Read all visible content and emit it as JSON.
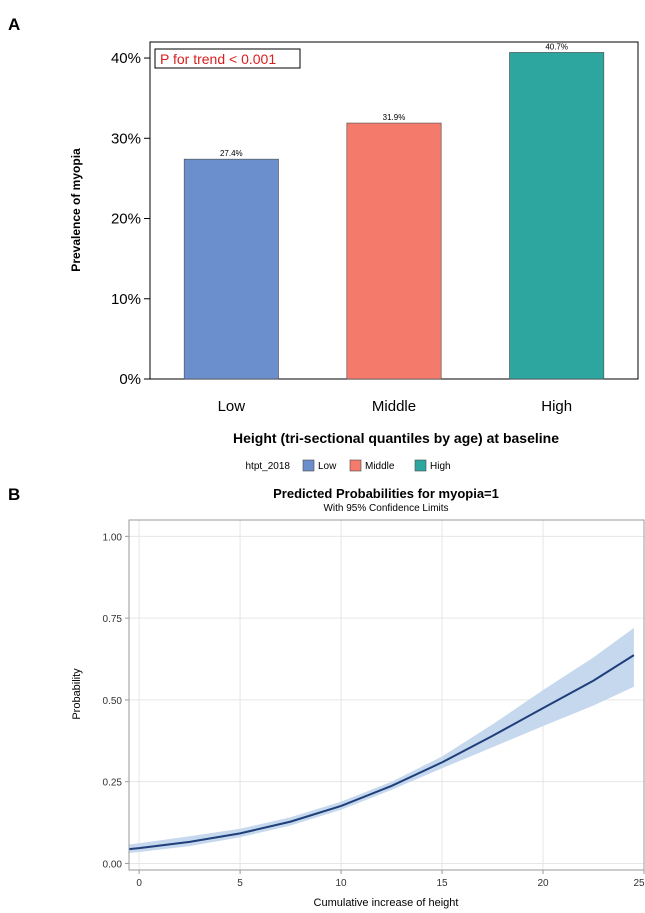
{
  "panels": {
    "a_label": "A",
    "b_label": "B"
  },
  "annotation": {
    "trend": "P for trend <  0.001"
  },
  "chart_data": [
    {
      "type": "bar",
      "categories": [
        "Low",
        "Middle",
        "High"
      ],
      "values": [
        27.4,
        31.9,
        40.7
      ],
      "data_labels": [
        "27.4%",
        "31.9%",
        "40.7%"
      ],
      "colors": [
        "#6b8fcc",
        "#f47a6c",
        "#2ea6a0"
      ],
      "ylabel": "Prevalence of myopia",
      "xlabel": "Height (tri-sectional quantiles by age) at baseline",
      "ylim": [
        0,
        42
      ],
      "yticks": [
        0,
        10,
        20,
        30,
        40
      ],
      "ytick_labels": [
        "0%",
        "10%",
        "20%",
        "30%",
        "40%"
      ],
      "grid": false,
      "legend": {
        "title": "htpt_2018",
        "placement": "bottom",
        "entries": [
          "Low",
          "Middle",
          "High"
        ]
      }
    },
    {
      "type": "line",
      "title": "Predicted Probabilities for myopia=1",
      "subtitle": "With 95% Confidence Limits",
      "xlabel": "Cumulative increase of height",
      "ylabel": "Probability",
      "xlim": [
        -0.5,
        25
      ],
      "ylim": [
        -0.02,
        1.05
      ],
      "xticks": [
        0,
        5,
        10,
        15,
        20,
        25
      ],
      "yticks": [
        0.0,
        0.25,
        0.5,
        0.75,
        1.0
      ],
      "ytick_labels": [
        "0.00",
        "0.25",
        "0.50",
        "0.75",
        "1.00"
      ],
      "grid": true,
      "line_color": "#1f3f7a",
      "band_color": "#c6d8ee",
      "series": [
        {
          "x": [
            -0.5,
            0,
            2.5,
            5,
            7.5,
            10,
            12.5,
            15,
            17.5,
            20,
            22.5,
            24.5
          ],
          "y": [
            0.044,
            0.047,
            0.066,
            0.092,
            0.128,
            0.176,
            0.237,
            0.309,
            0.39,
            0.475,
            0.559,
            0.637
          ],
          "lower": [
            0.032,
            0.035,
            0.053,
            0.08,
            0.116,
            0.164,
            0.225,
            0.291,
            0.355,
            0.42,
            0.483,
            0.54
          ],
          "upper": [
            0.058,
            0.062,
            0.083,
            0.106,
            0.141,
            0.189,
            0.25,
            0.327,
            0.425,
            0.53,
            0.63,
            0.72
          ]
        }
      ]
    }
  ]
}
